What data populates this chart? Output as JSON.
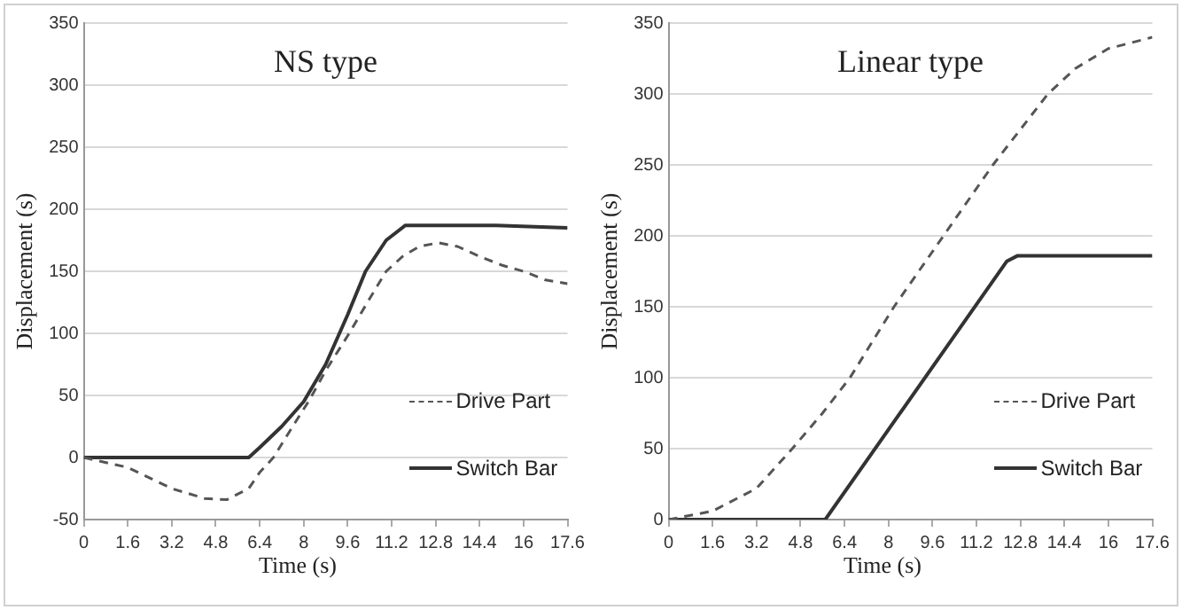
{
  "chart_data": [
    {
      "type": "line",
      "title": "NS type",
      "xlabel": "Time (s)",
      "ylabel": "Displacement (s)",
      "xlim": [
        0,
        17.6
      ],
      "xticks": [
        0,
        1.6,
        3.2,
        4.8,
        6.4,
        8,
        9.6,
        11.2,
        12.8,
        14.4,
        16,
        17.6
      ],
      "ylim": [
        -50,
        350
      ],
      "yticks": [
        -50,
        0,
        50,
        100,
        150,
        200,
        250,
        300,
        350
      ],
      "grid": "y",
      "legend": "bottom right",
      "marker": "none",
      "series": [
        {
          "name": "Drive Part",
          "color": "#555555",
          "line_style": "dashed",
          "x": [
            0,
            1.6,
            3.2,
            4.4,
            5.2,
            6,
            6.4,
            6.9,
            7.6,
            8.2,
            8.8,
            9.6,
            10.4,
            11,
            11.6,
            12.2,
            12.9,
            13.6,
            14.4,
            15.2,
            16,
            16.8,
            17.6
          ],
          "values": [
            0,
            -8,
            -25,
            -33,
            -34,
            -25,
            -12,
            0,
            25,
            46,
            70,
            98,
            128,
            150,
            162,
            170,
            173,
            170,
            162,
            155,
            150,
            143,
            140
          ]
        },
        {
          "name": "Switch Bar",
          "color": "#333333",
          "line_style": "solid",
          "x": [
            0,
            6,
            6.4,
            7.2,
            8,
            8.8,
            9.6,
            10.25,
            11,
            11.7,
            15,
            17.6
          ],
          "values": [
            0,
            0,
            8,
            25,
            45,
            75,
            115,
            150,
            175,
            187,
            187,
            185
          ]
        }
      ]
    },
    {
      "type": "line",
      "title": "Linear type",
      "xlabel": "Time (s)",
      "ylabel": "Displacement (s)",
      "xlim": [
        0,
        17.6
      ],
      "xticks": [
        0,
        1.6,
        3.2,
        4.8,
        6.4,
        8,
        9.6,
        11.2,
        12.8,
        14.4,
        16,
        17.6
      ],
      "ylim": [
        0,
        350
      ],
      "yticks": [
        0,
        50,
        100,
        150,
        200,
        250,
        300,
        350
      ],
      "grid": "y",
      "legend": "bottom right",
      "marker": "none",
      "series": [
        {
          "name": "Drive Part",
          "color": "#555555",
          "line_style": "dashed",
          "x": [
            0,
            1.6,
            3.2,
            4.5,
            5.6,
            6.6,
            7.4,
            8.2,
            9.1,
            10,
            10.9,
            11.8,
            12.8,
            13.8,
            14.8,
            16,
            17.6
          ],
          "values": [
            0,
            6,
            22,
            50,
            75,
            100,
            125,
            150,
            175,
            200,
            225,
            250,
            275,
            300,
            318,
            332,
            340
          ]
        },
        {
          "name": "Switch Bar",
          "color": "#333333",
          "line_style": "solid",
          "x": [
            0,
            5.7,
            12.3,
            12.7,
            17.6
          ],
          "values": [
            0,
            0,
            182,
            186,
            186
          ]
        }
      ]
    }
  ]
}
